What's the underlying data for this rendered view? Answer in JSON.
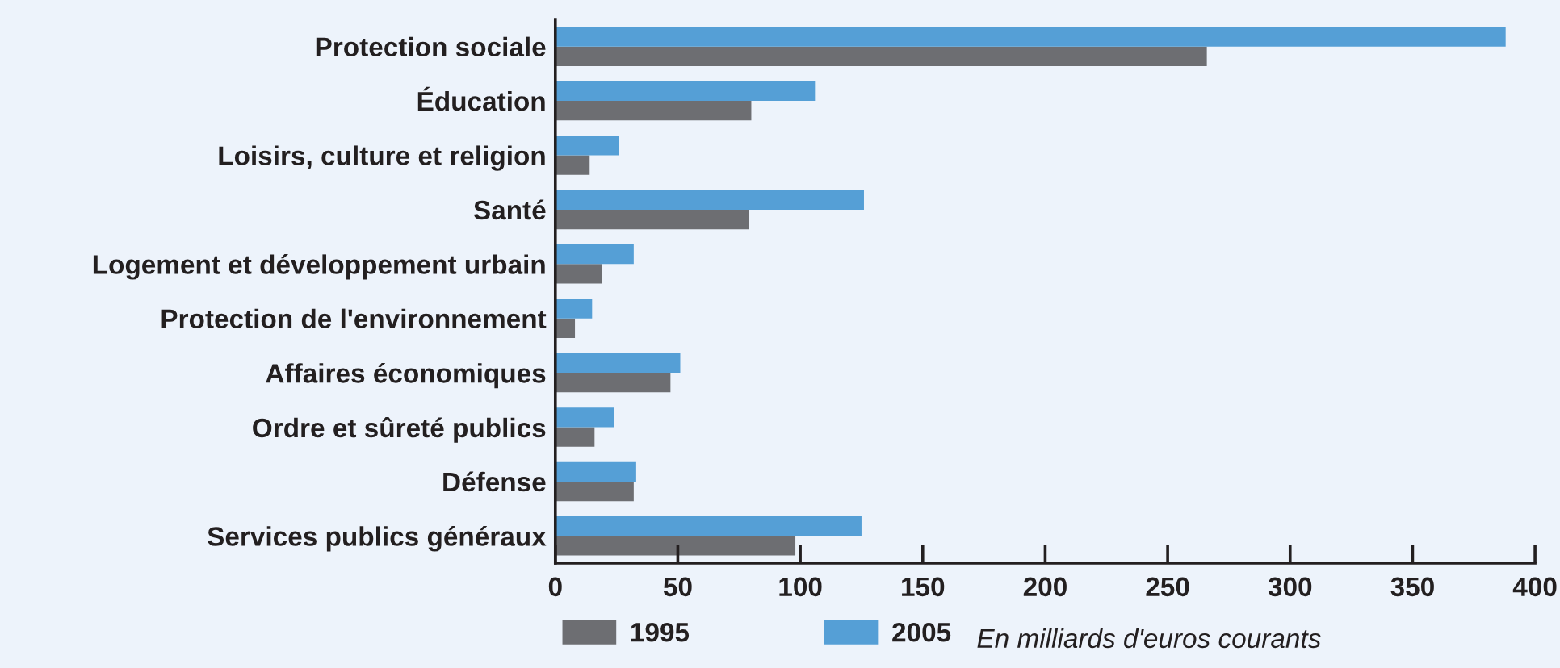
{
  "chart_data": {
    "type": "bar",
    "orientation": "horizontal",
    "categories": [
      "Protection sociale",
      "Éducation",
      "Loisirs, culture et religion",
      "Santé",
      "Logement et développement urbain",
      "Protection de l'environnement",
      "Affaires économiques",
      "Ordre et sûreté publics",
      "Défense",
      "Services publics généraux"
    ],
    "series": [
      {
        "name": "1995",
        "color": "#6d6e72",
        "values": [
          266,
          80,
          14,
          79,
          19,
          8,
          47,
          16,
          32,
          98
        ]
      },
      {
        "name": "2005",
        "color": "#559fd6",
        "values": [
          388,
          106,
          26,
          126,
          32,
          15,
          51,
          24,
          33,
          125
        ]
      }
    ],
    "xlim": [
      0,
      400
    ],
    "xticks": [
      0,
      50,
      100,
      150,
      200,
      250,
      300,
      350,
      400
    ],
    "legend": "bottom",
    "annotations": [
      "En milliards d'euros courants"
    ]
  }
}
